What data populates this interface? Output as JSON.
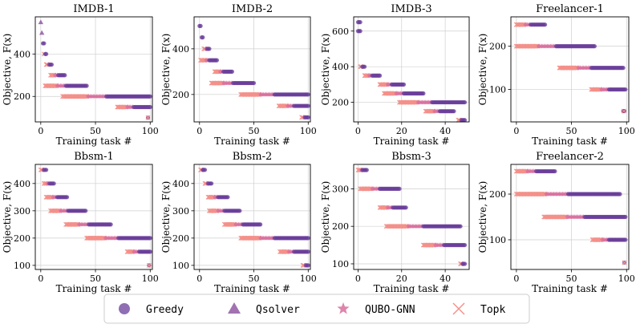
{
  "colors": {
    "greedy": "#6a3d9a",
    "qsolver": "#8b4f9e",
    "qubo_gnn": "#d8709e",
    "topk": "#f4908a",
    "grid": "#cfcfcf"
  },
  "legend": {
    "items": [
      {
        "key": "greedy",
        "label": "Greedy",
        "marker": "circle"
      },
      {
        "key": "qsolver",
        "label": "Qsolver",
        "marker": "triangle"
      },
      {
        "key": "qubo_gnn",
        "label": "QUBO-GNN",
        "marker": "star"
      },
      {
        "key": "topk",
        "label": "Topk",
        "marker": "x"
      }
    ]
  },
  "chart_data": [
    {
      "type": "scatter",
      "title": "IMDB-1",
      "xlabel": "Training task #",
      "ylabel": "Objective, F(x)",
      "xlim": [
        -5,
        102
      ],
      "ylim": [
        80,
        575
      ],
      "xticks": [
        0,
        50,
        100
      ],
      "yticks": [
        200,
        400
      ],
      "levels": [
        {
          "y": 550,
          "x": [
            0,
            0
          ]
        },
        {
          "y": 500,
          "x": [
            1,
            1
          ]
        },
        {
          "y": 450,
          "x": [
            2,
            3
          ]
        },
        {
          "y": 400,
          "x": [
            3,
            5
          ]
        },
        {
          "y": 350,
          "x": [
            5,
            10
          ]
        },
        {
          "y": 300,
          "x": [
            9,
            22
          ]
        },
        {
          "y": 250,
          "x": [
            4,
            42
          ]
        },
        {
          "y": 200,
          "x": [
            20,
            100
          ]
        },
        {
          "y": 150,
          "x": [
            70,
            100
          ]
        },
        {
          "y": 100,
          "x": [
            98,
            98
          ]
        }
      ]
    },
    {
      "type": "scatter",
      "title": "IMDB-2",
      "xlabel": "Training task #",
      "ylabel": "Objective, F(x)",
      "xlim": [
        -5,
        102
      ],
      "ylim": [
        80,
        540
      ],
      "xticks": [
        0,
        50,
        100
      ],
      "yticks": [
        200,
        400
      ],
      "levels": [
        {
          "y": 500,
          "x": [
            0,
            1
          ]
        },
        {
          "y": 450,
          "x": [
            2,
            3
          ]
        },
        {
          "y": 400,
          "x": [
            4,
            9
          ]
        },
        {
          "y": 350,
          "x": [
            1,
            16
          ]
        },
        {
          "y": 300,
          "x": [
            14,
            30
          ]
        },
        {
          "y": 250,
          "x": [
            11,
            50
          ]
        },
        {
          "y": 200,
          "x": [
            38,
            100
          ]
        },
        {
          "y": 150,
          "x": [
            73,
            100
          ]
        },
        {
          "y": 100,
          "x": [
            94,
            100
          ]
        }
      ]
    },
    {
      "type": "scatter",
      "title": "IMDB-3",
      "xlabel": "Training task #",
      "ylabel": "Objective, F(x)",
      "xlim": [
        -2,
        51
      ],
      "ylim": [
        90,
        680
      ],
      "xticks": [
        0,
        20,
        40
      ],
      "yticks": [
        200,
        400,
        600
      ],
      "levels": [
        {
          "y": 650,
          "x": [
            0,
            1
          ]
        },
        {
          "y": 600,
          "x": [
            0,
            1
          ]
        },
        {
          "y": 400,
          "x": [
            1,
            3
          ]
        },
        {
          "y": 350,
          "x": [
            3,
            10
          ]
        },
        {
          "y": 300,
          "x": [
            10,
            21
          ]
        },
        {
          "y": 250,
          "x": [
            12,
            30
          ]
        },
        {
          "y": 200,
          "x": [
            19,
            49
          ]
        },
        {
          "y": 150,
          "x": [
            31,
            44
          ]
        },
        {
          "y": 100,
          "x": [
            46,
            49
          ]
        }
      ]
    },
    {
      "type": "scatter",
      "title": "Freelancer-1",
      "xlabel": "Training task #",
      "ylabel": "Objective, F(x)",
      "xlim": [
        -5,
        102
      ],
      "ylim": [
        25,
        268
      ],
      "xticks": [
        0,
        50,
        100
      ],
      "yticks": [
        100,
        200
      ],
      "levels": [
        {
          "y": 250,
          "x": [
            0,
            26
          ]
        },
        {
          "y": 200,
          "x": [
            0,
            71
          ]
        },
        {
          "y": 150,
          "x": [
            39,
            97
          ]
        },
        {
          "y": 100,
          "x": [
            68,
            99
          ]
        },
        {
          "y": 50,
          "x": [
            97,
            98
          ]
        }
      ]
    },
    {
      "type": "scatter",
      "title": "Bbsm-1",
      "xlabel": "Training task #",
      "ylabel": "Objective, F(x)",
      "xlim": [
        -5,
        102
      ],
      "ylim": [
        85,
        470
      ],
      "xticks": [
        0,
        50,
        100
      ],
      "yticks": [
        100,
        200,
        300,
        400
      ],
      "levels": [
        {
          "y": 450,
          "x": [
            0,
            5
          ]
        },
        {
          "y": 400,
          "x": [
            3,
            12
          ]
        },
        {
          "y": 350,
          "x": [
            5,
            24
          ]
        },
        {
          "y": 300,
          "x": [
            9,
            41
          ]
        },
        {
          "y": 250,
          "x": [
            23,
            64
          ]
        },
        {
          "y": 200,
          "x": [
            42,
            100
          ]
        },
        {
          "y": 150,
          "x": [
            79,
            100
          ]
        },
        {
          "y": 100,
          "x": [
            99,
            99
          ]
        }
      ]
    },
    {
      "type": "scatter",
      "title": "Bbsm-2",
      "xlabel": "Training task #",
      "ylabel": "Objective, F(x)",
      "xlim": [
        -5,
        102
      ],
      "ylim": [
        85,
        470
      ],
      "xticks": [
        0,
        50,
        100
      ],
      "yticks": [
        100,
        200,
        300,
        400
      ],
      "levels": [
        {
          "y": 450,
          "x": [
            1,
            5
          ]
        },
        {
          "y": 400,
          "x": [
            5,
            11
          ]
        },
        {
          "y": 350,
          "x": [
            8,
            26
          ]
        },
        {
          "y": 300,
          "x": [
            9,
            37
          ]
        },
        {
          "y": 250,
          "x": [
            23,
            56
          ]
        },
        {
          "y": 200,
          "x": [
            38,
            100
          ]
        },
        {
          "y": 150,
          "x": [
            74,
            100
          ]
        },
        {
          "y": 100,
          "x": [
            95,
            100
          ]
        }
      ]
    },
    {
      "type": "scatter",
      "title": "Bbsm-3",
      "xlabel": "Training task #",
      "ylabel": "Objective, F(x)",
      "xlim": [
        -2,
        51
      ],
      "ylim": [
        85,
        365
      ],
      "xticks": [
        0,
        20,
        40
      ],
      "yticks": [
        100,
        200,
        300
      ],
      "levels": [
        {
          "y": 350,
          "x": [
            0,
            4
          ]
        },
        {
          "y": 300,
          "x": [
            1,
            19
          ]
        },
        {
          "y": 250,
          "x": [
            10,
            22
          ]
        },
        {
          "y": 200,
          "x": [
            13,
            47
          ]
        },
        {
          "y": 150,
          "x": [
            30,
            49
          ]
        },
        {
          "y": 100,
          "x": [
            47,
            49
          ]
        }
      ]
    },
    {
      "type": "scatter",
      "title": "Freelancer-2",
      "xlabel": "Training task #",
      "ylabel": "Objective, F(x)",
      "xlim": [
        -5,
        102
      ],
      "ylim": [
        35,
        265
      ],
      "xticks": [
        0,
        50,
        100
      ],
      "yticks": [
        100,
        200
      ],
      "levels": [
        {
          "y": 250,
          "x": [
            0,
            35
          ]
        },
        {
          "y": 200,
          "x": [
            0,
            94
          ]
        },
        {
          "y": 150,
          "x": [
            25,
            99
          ]
        },
        {
          "y": 100,
          "x": [
            69,
            99
          ]
        },
        {
          "y": 50,
          "x": [
            98,
            98
          ]
        }
      ]
    }
  ]
}
